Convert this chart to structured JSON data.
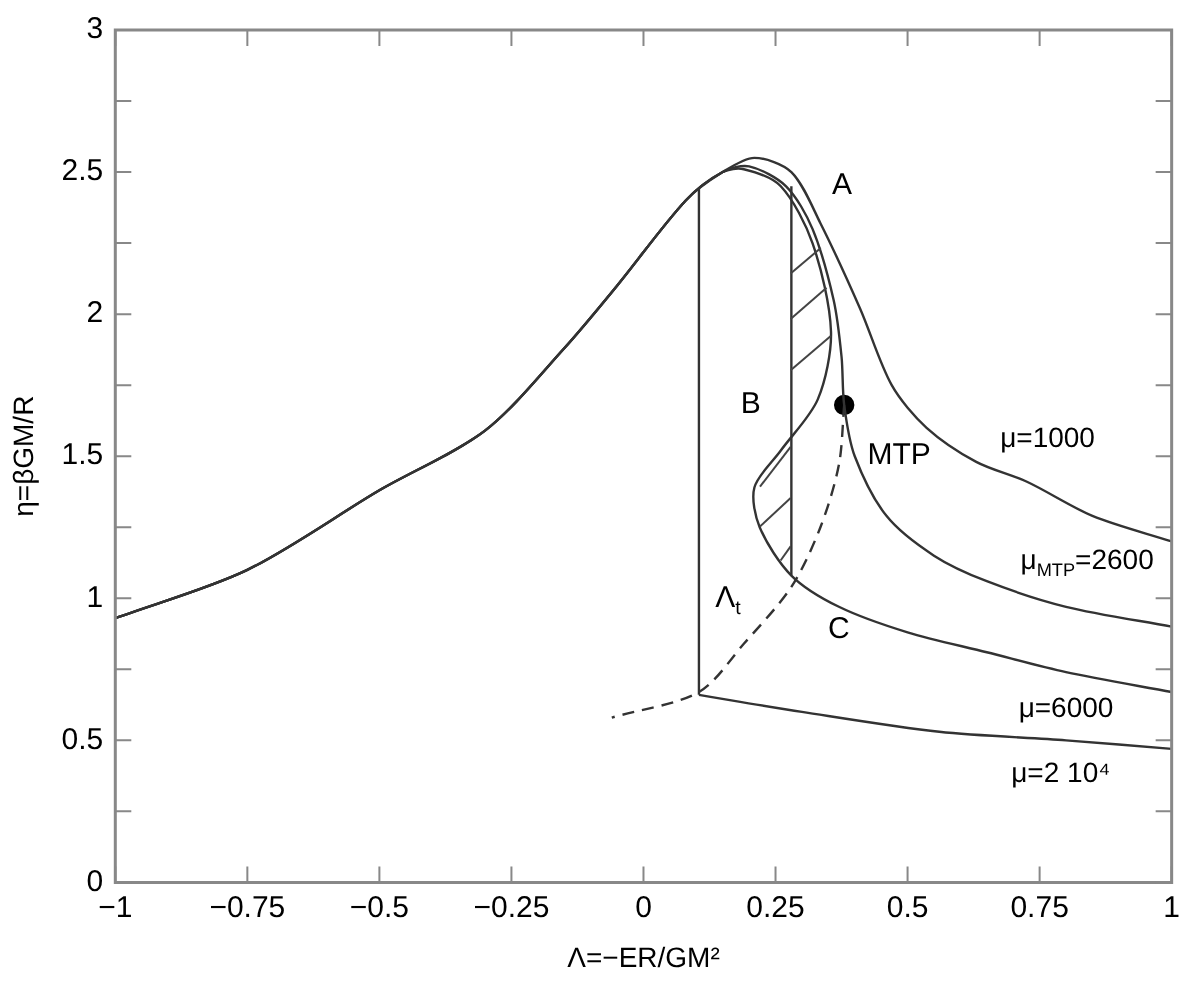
{
  "chart_data": {
    "type": "line",
    "xlabel": "Λ=−ER/GM²",
    "ylabel": "η=βGM/R",
    "xlim": [
      -1,
      1
    ],
    "xticks": [
      -1,
      -0.75,
      -0.5,
      -0.25,
      0,
      0.25,
      0.5,
      0.75,
      1
    ],
    "ylim": [
      0,
      3
    ],
    "yticks": [
      0,
      {
        "value": 0.25,
        "label": null
      },
      0.5,
      {
        "value": 0.75,
        "label": null
      },
      1,
      {
        "value": 1.25,
        "label": null
      },
      1.5,
      {
        "value": 1.75,
        "label": null
      },
      2,
      {
        "value": 2.25,
        "label": null
      },
      2.5,
      {
        "value": 2.75,
        "label": null
      },
      3
    ],
    "grid": false,
    "legend": false,
    "marker": "none",
    "line_style": "solid",
    "series": [
      {
        "name": "μ=1000",
        "color": "#333333",
        "x": [
          -1,
          -0.75,
          -0.5,
          -0.3,
          -0.15,
          -0.05,
          0.08,
          0.15,
          0.21,
          0.28,
          0.335,
          0.41,
          0.47,
          0.536,
          0.63,
          0.726,
          0.85,
          1
        ],
        "values": [
          0.93,
          1.1,
          1.38,
          1.59,
          1.88,
          2.1,
          2.4,
          2.5,
          2.55,
          2.5,
          2.32,
          2.02,
          1.75,
          1.6,
          1.48,
          1.41,
          1.29,
          1.2
        ]
      },
      {
        "name": "μ$_{MTP}$=2600",
        "color": "#333333",
        "x": [
          -1,
          -0.75,
          -0.5,
          -0.3,
          -0.15,
          -0.05,
          0.08,
          0.15,
          0.2,
          0.27,
          0.32,
          0.36,
          0.375,
          0.38,
          0.4,
          0.46,
          0.55,
          0.65,
          0.8,
          1
        ],
        "values": [
          0.93,
          1.1,
          1.38,
          1.59,
          1.88,
          2.1,
          2.4,
          2.5,
          2.52,
          2.45,
          2.3,
          2.05,
          1.85,
          1.68,
          1.5,
          1.29,
          1.15,
          1.06,
          0.97,
          0.9
        ]
      },
      {
        "name": "μ=6000",
        "color": "#333333",
        "x": [
          -1,
          -0.75,
          -0.5,
          -0.3,
          -0.15,
          -0.05,
          0.08,
          0.15,
          0.19,
          0.26,
          0.32,
          0.355,
          0.33,
          0.26,
          0.21,
          0.22,
          0.28,
          0.37,
          0.5,
          0.65,
          0.8,
          1
        ],
        "values": [
          0.93,
          1.1,
          1.38,
          1.59,
          1.88,
          2.1,
          2.4,
          2.5,
          2.51,
          2.45,
          2.25,
          1.94,
          1.7,
          1.52,
          1.39,
          1.25,
          1.08,
          0.97,
          0.88,
          0.81,
          0.74,
          0.67
        ]
      },
      {
        "color": "#333333",
        "x": [
          0.105,
          0.105
        ],
        "values": [
          2.44,
          0.66
        ]
      },
      {
        "name": "μ=2 10⁴",
        "color": "#333333",
        "x": [
          0.105,
          0.3,
          0.56,
          0.8,
          1
        ],
        "values": [
          0.66,
          0.6,
          0.53,
          0.5,
          0.47
        ]
      },
      {
        "color": "#333333",
        "x": [
          0.28,
          0.28
        ],
        "values": [
          2.45,
          1.08
        ]
      },
      {
        "color": "#333333",
        "line_style": "dashed",
        "x": [
          0.38,
          0.37,
          0.335,
          0.28,
          0.19,
          0.105,
          -0.06
        ],
        "values": [
          1.68,
          1.47,
          1.25,
          1.04,
          0.84,
          0.67,
          0.58
        ]
      },
      {
        "type": "scatter",
        "marker": "circle",
        "color": "#000000",
        "x": [
          0.38
        ],
        "values": [
          1.68
        ]
      }
    ],
    "annotations": [
      "A",
      {
        "text": "B",
        "x": 0.26,
        "y": 1.52
      },
      "C",
      "MTP",
      "Λ$_{t}$"
    ]
  }
}
